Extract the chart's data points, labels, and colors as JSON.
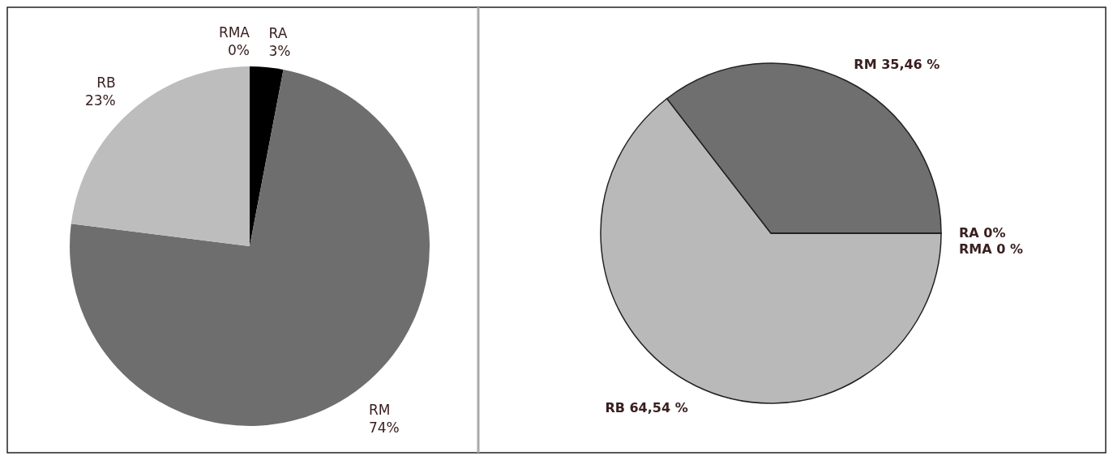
{
  "chart_data": [
    {
      "type": "pie",
      "categories": [
        "RMA",
        "RA",
        "RM",
        "RB"
      ],
      "values": [
        0,
        3,
        74,
        23
      ],
      "colors": [
        "#4a4a4a",
        "#000000",
        "#6e6e6e",
        "#bdbdbd"
      ],
      "value_labels": [
        "0%",
        "3%",
        "74%",
        "23%"
      ]
    },
    {
      "type": "pie",
      "categories": [
        "RB",
        "RM",
        "RA",
        "RMA"
      ],
      "values": [
        64.54,
        35.46,
        0,
        0
      ],
      "colors": [
        "#b9b9b9",
        "#6f6f6f",
        "#000000",
        "#4a4a4a"
      ],
      "value_labels": [
        "64,54 %",
        "35,46 %",
        "0%",
        "0 %"
      ]
    }
  ]
}
